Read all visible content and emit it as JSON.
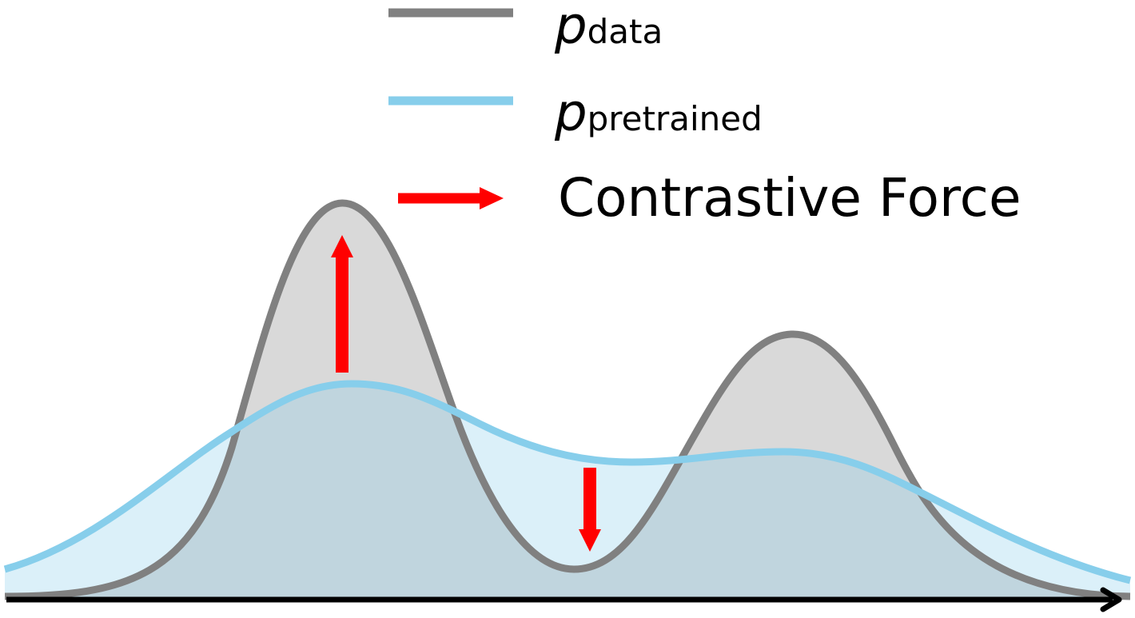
{
  "legend": {
    "entries": [
      {
        "symbol": "p",
        "subscript": "data",
        "color": "#808080",
        "kind": "line"
      },
      {
        "symbol": "p",
        "subscript": "pretrained",
        "color": "#87ceeb",
        "kind": "line"
      },
      {
        "label": "Contrastive Force",
        "color": "#ff0000",
        "kind": "arrow"
      }
    ]
  },
  "colors": {
    "data_curve": "#808080",
    "data_fill": "#d9d9d9",
    "pretrained_curve": "#87ceeb",
    "pretrained_fill": "#cfe9f5",
    "force_arrow": "#ff0000",
    "axis": "#000000"
  },
  "forces": [
    {
      "direction": "up",
      "meaning": "increase density toward data peak"
    },
    {
      "direction": "down",
      "meaning": "decrease density in valley"
    }
  ]
}
